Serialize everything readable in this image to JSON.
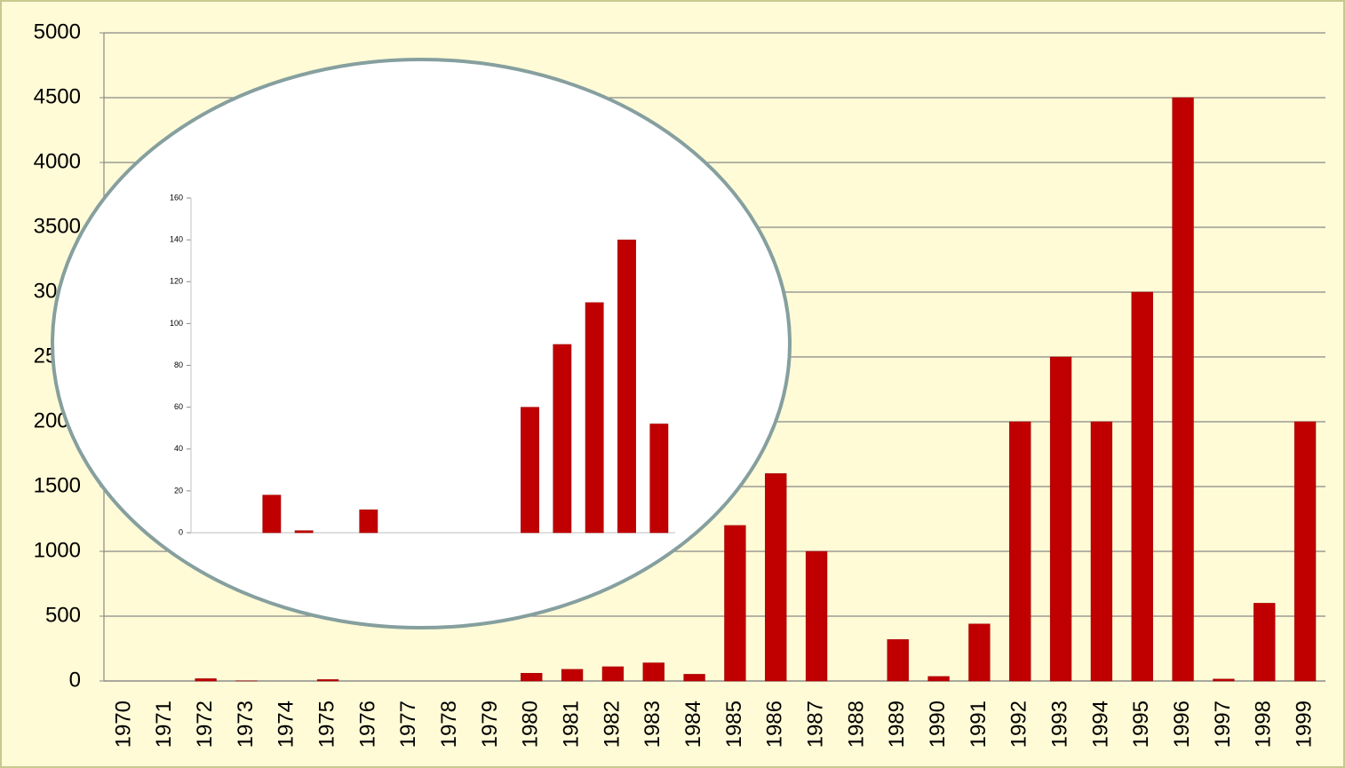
{
  "chart_data": [
    {
      "type": "bar",
      "categories": [
        "1970",
        "1971",
        "1972",
        "1973",
        "1974",
        "1975",
        "1976",
        "1977",
        "1978",
        "1979",
        "1980",
        "1981",
        "1982",
        "1983",
        "1984",
        "1985",
        "1986",
        "1987",
        "1988",
        "1989",
        "1990",
        "1991",
        "1992",
        "1993",
        "1994",
        "1995",
        "1996",
        "1997",
        "1998",
        "1999"
      ],
      "values": [
        0,
        0,
        18,
        1,
        0,
        11,
        0,
        0,
        0,
        0,
        60,
        90,
        110,
        140,
        52,
        1200,
        1600,
        1000,
        0,
        320,
        35,
        440,
        2000,
        2500,
        2000,
        3000,
        4500,
        15,
        600,
        2000
      ],
      "color": "#c00000",
      "ylim": [
        0,
        5000
      ],
      "yticks": [
        0,
        500,
        1000,
        1500,
        2000,
        2500,
        3000,
        3500,
        4000,
        4500,
        5000
      ],
      "grid": true
    },
    {
      "type": "bar",
      "categories": [
        null,
        null,
        null,
        null,
        null,
        null,
        null,
        null,
        null,
        null,
        null,
        null,
        null,
        null,
        null
      ],
      "values": [
        0,
        0,
        18,
        1,
        0,
        11,
        0,
        0,
        0,
        0,
        60,
        90,
        110,
        140,
        52
      ],
      "color": "#c00000",
      "ylim": [
        0,
        160
      ],
      "yticks": [
        0,
        20,
        40,
        60,
        80,
        100,
        120,
        140,
        160
      ],
      "grid": false
    }
  ]
}
